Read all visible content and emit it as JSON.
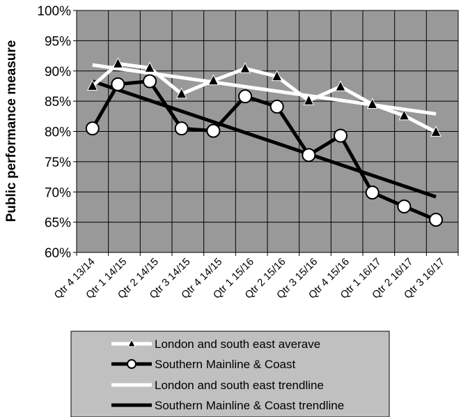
{
  "chart_data": {
    "type": "line",
    "title": "",
    "xlabel": "",
    "ylabel": "Public performance measure",
    "ylim": [
      0.6,
      1.0
    ],
    "y_ticks": [
      "60%",
      "65%",
      "70%",
      "75%",
      "80%",
      "85%",
      "90%",
      "95%",
      "100%"
    ],
    "grid": true,
    "categories": [
      "Qtr 4 13/14",
      "Qtr 1 14/15",
      "Qtr 2 14/15",
      "Qtr 3 14/15",
      "Qtr 4 14/15",
      "Qtr 1 15/16",
      "Qtr 2 15/16",
      "Qtr 3 15/16",
      "Qtr 4 15/16",
      "Qtr 1 16/17",
      "Qtr 2 16/17",
      "Qtr 3 16/17"
    ],
    "series": [
      {
        "name": "London and south east averave",
        "marker": "triangle",
        "color": "#ffffff",
        "x": [
          0,
          0.8,
          1.8,
          2.8,
          3.8,
          4.8,
          5.8,
          6.8,
          7.8,
          8.8,
          9.8,
          10.8
        ],
        "values": [
          0.875,
          0.912,
          0.905,
          0.862,
          0.884,
          0.904,
          0.891,
          0.851,
          0.874,
          0.845,
          0.826,
          0.799
        ]
      },
      {
        "name": "Southern Mainline & Coast",
        "marker": "circle",
        "color": "#000000",
        "x": [
          0,
          0.8,
          1.8,
          2.8,
          3.8,
          4.8,
          5.8,
          6.8,
          7.8,
          8.8,
          9.8,
          10.8
        ],
        "values": [
          0.805,
          0.878,
          0.883,
          0.805,
          0.801,
          0.858,
          0.841,
          0.761,
          0.793,
          0.699,
          0.676,
          0.654
        ]
      },
      {
        "name": "London and south east trendline",
        "marker": "none",
        "color": "#ffffff",
        "x": [
          0,
          10.8
        ],
        "values": [
          0.91,
          0.829
        ]
      },
      {
        "name": "Southern Mainline & Coast trendline",
        "marker": "none",
        "color": "#000000",
        "x": [
          0,
          10.8
        ],
        "values": [
          0.883,
          0.692
        ]
      }
    ],
    "legend_position": "bottom"
  }
}
